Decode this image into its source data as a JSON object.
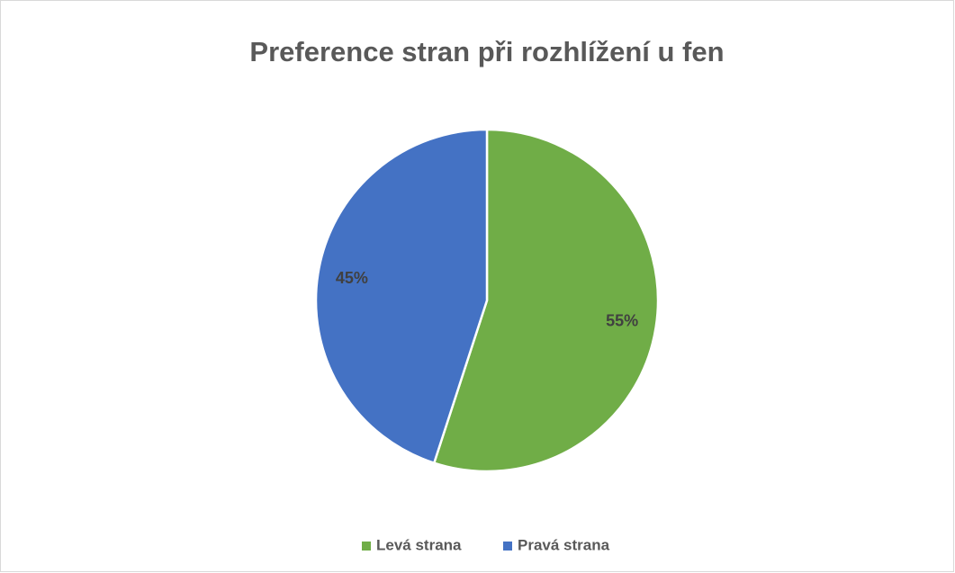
{
  "chart_data": {
    "type": "pie",
    "title": "Preference stran při rozhlížení u fen",
    "categories": [
      "Levá strana",
      "Pravá strana"
    ],
    "values": [
      55,
      45
    ],
    "value_labels": [
      "55%",
      "45%"
    ],
    "colors": [
      "#70ad47",
      "#4472c4"
    ],
    "legend": "bottom"
  }
}
